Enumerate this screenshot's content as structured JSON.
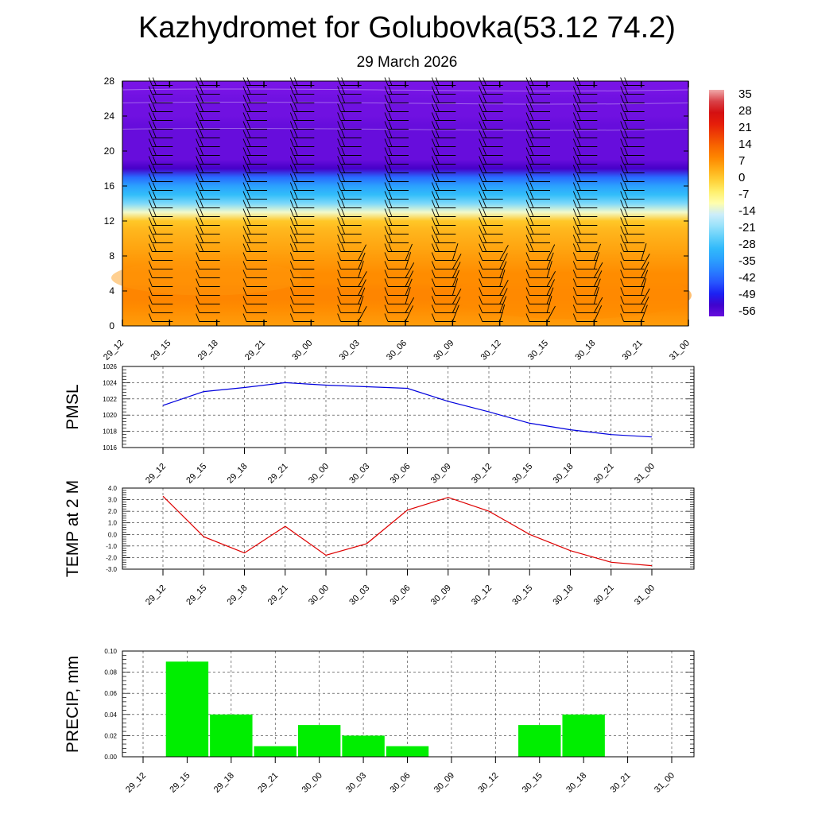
{
  "header": {
    "title": "Kazhydromet for Golubovka(53.12 74.2)",
    "subtitle": "29 March 2026"
  },
  "time_labels": [
    "29_12",
    "29_15",
    "29_18",
    "29_21",
    "30_00",
    "30_03",
    "30_06",
    "30_09",
    "30_12",
    "30_15",
    "30_18",
    "30_21",
    "31_00"
  ],
  "colors": {
    "pmsl_line": "#0000dd",
    "temp_line": "#dd0000",
    "precip_bar": "#00ee00",
    "wind_barb": "#000000"
  },
  "chart_data": [
    {
      "type": "heatmap",
      "id": "vertical-section",
      "description_of_fill": "air temperature cross-section with wind barbs",
      "ylim": [
        0,
        28
      ],
      "y_ticks": [
        "0",
        "4",
        "8",
        "12",
        "16",
        "20",
        "24",
        "28"
      ],
      "x_ticks": [
        "29_12",
        "29_15",
        "29_18",
        "29_21",
        "30_00",
        "30_03",
        "30_06",
        "30_09",
        "30_12",
        "30_15",
        "30_18",
        "30_21",
        "31_00"
      ],
      "colorbar_labels": [
        "35",
        "28",
        "21",
        "14",
        "7",
        "0",
        "-7",
        "-14",
        "-21",
        "-28",
        "-35",
        "-42",
        "-49",
        "-56"
      ],
      "colorbar_range": [
        -56,
        35
      ],
      "levels_y": [
        0,
        1,
        2,
        3,
        4,
        5,
        6,
        7,
        8,
        9,
        10,
        11,
        12,
        13,
        14,
        15,
        16,
        17,
        18,
        19,
        20,
        21,
        22,
        23,
        24,
        25,
        26,
        27,
        28
      ],
      "temperature_profile": [
        5,
        6,
        7,
        8,
        8,
        7,
        7,
        6,
        5,
        4,
        3,
        2,
        0,
        -12,
        -22,
        -28,
        -33,
        -40,
        -52,
        -56,
        -56,
        -56,
        -56,
        -56,
        -57,
        -57,
        -57,
        -58,
        -58
      ],
      "wind_barbs_present": true
    },
    {
      "type": "line",
      "id": "pmsl",
      "ylabel": "PMSL",
      "ylim": [
        1016,
        1026
      ],
      "y_ticks": [
        "1016",
        "1018",
        "1020",
        "1022",
        "1024",
        "1026"
      ],
      "categories": [
        "29_12",
        "29_15",
        "29_18",
        "29_21",
        "30_00",
        "30_03",
        "30_06",
        "30_09",
        "30_12",
        "30_15",
        "30_18",
        "30_21",
        "31_00"
      ],
      "series": [
        {
          "values": [
            1021.2,
            1022.9,
            1023.4,
            1024.0,
            1023.7,
            1023.5,
            1023.3,
            1021.7,
            1020.4,
            1019.0,
            1018.2,
            1017.6,
            1017.3
          ]
        }
      ]
    },
    {
      "type": "line",
      "id": "temp2m",
      "ylabel": "TEMP at 2 M",
      "ylim": [
        -3.0,
        4.0
      ],
      "y_ticks": [
        "-3.0",
        "-2.0",
        "-1.0",
        "0.0",
        "1.0",
        "2.0",
        "3.0",
        "4.0"
      ],
      "categories": [
        "29_12",
        "29_15",
        "29_18",
        "29_21",
        "30_00",
        "30_03",
        "30_06",
        "30_09",
        "30_12",
        "30_15",
        "30_18",
        "30_21",
        "31_00"
      ],
      "series": [
        {
          "values": [
            3.3,
            -0.2,
            -1.6,
            0.7,
            -1.8,
            -0.8,
            2.1,
            3.2,
            2.0,
            0.0,
            -1.4,
            -2.4,
            -2.7
          ]
        }
      ]
    },
    {
      "type": "bar",
      "id": "precip",
      "ylabel": "PRECIP, mm",
      "ylim": [
        0,
        0.1
      ],
      "y_ticks": [
        "0.00",
        "0.02",
        "0.04",
        "0.06",
        "0.08",
        "0.10"
      ],
      "categories": [
        "29_12",
        "29_15",
        "29_18",
        "29_21",
        "30_00",
        "30_03",
        "30_06",
        "30_09",
        "30_12",
        "30_15",
        "30_18",
        "30_21",
        "31_00"
      ],
      "values": [
        0,
        0.09,
        0.04,
        0.01,
        0.03,
        0.02,
        0.01,
        0,
        0,
        0.03,
        0.04,
        0,
        0
      ]
    }
  ]
}
